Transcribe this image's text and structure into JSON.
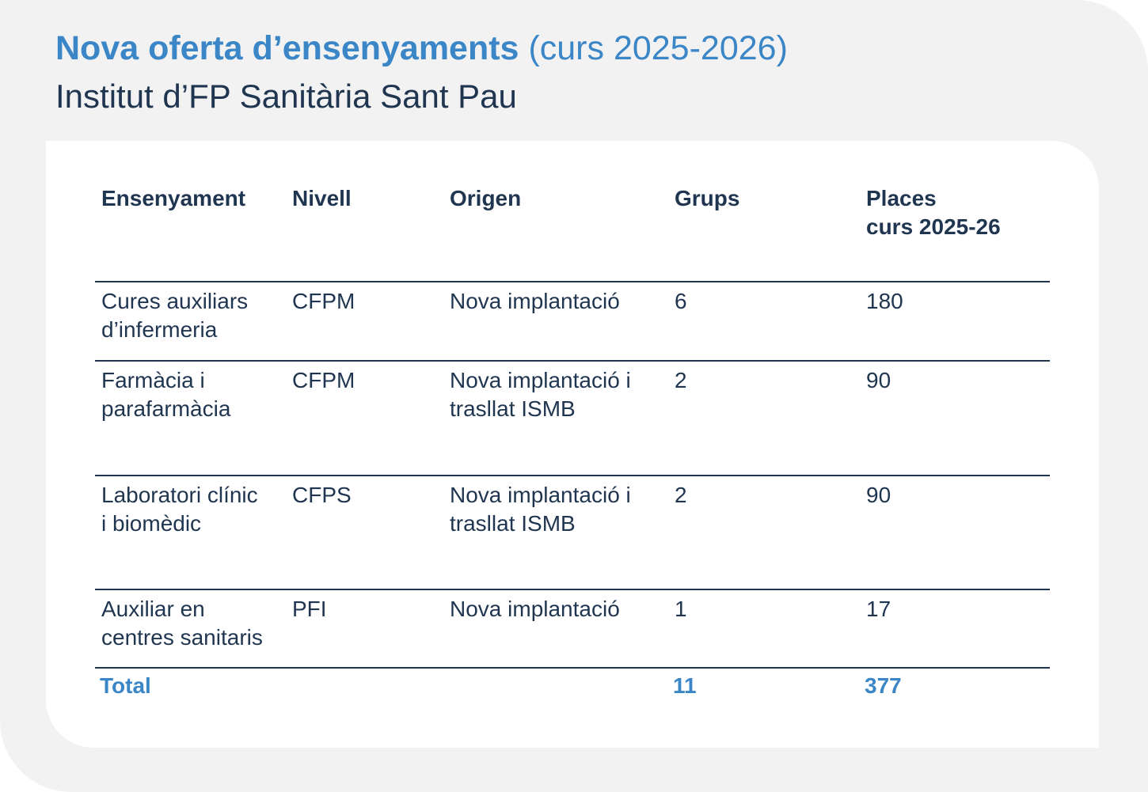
{
  "title": {
    "bold": "Nova oferta d’ensenyaments",
    "normal": "(curs 2025-2026)"
  },
  "subtitle": "Institut d’FP Sanitària Sant Pau",
  "table": {
    "headers": {
      "ensenyament": "Ensenyament",
      "nivell": "Nivell",
      "origen": "Origen",
      "grups": "Grups",
      "places_line1": "Places",
      "places_line2": "curs 2025-26"
    },
    "rows": [
      {
        "ensenyament_line1": "Cures auxiliars",
        "ensenyament_line2": "d’infermeria",
        "nivell": "CFPM",
        "origen_line1": "Nova implantació",
        "origen_line2": "",
        "grups": "6",
        "places": "180"
      },
      {
        "ensenyament_line1": "Farmàcia i",
        "ensenyament_line2": "parafarmàcia",
        "nivell": "CFPM",
        "origen_line1": "Nova implantació i",
        "origen_line2": "trasllat ISMB",
        "grups": "2",
        "places": "90"
      },
      {
        "ensenyament_line1": "Laboratori clínic",
        "ensenyament_line2": "i biomèdic",
        "nivell": "CFPS",
        "origen_line1": "Nova implantació i",
        "origen_line2": "trasllat ISMB",
        "grups": "2",
        "places": "90"
      },
      {
        "ensenyament_line1": "Auxiliar en",
        "ensenyament_line2": "centres sanitaris",
        "nivell": "PFI",
        "origen_line1": "Nova implantació",
        "origen_line2": "",
        "grups": "1",
        "places": "17"
      }
    ],
    "total": {
      "label": "Total",
      "grups": "11",
      "places": "377"
    }
  },
  "colors": {
    "accent_blue": "#3a86c6",
    "dark_navy": "#1f3550",
    "background": "#f2f2f2",
    "panel": "#ffffff"
  }
}
